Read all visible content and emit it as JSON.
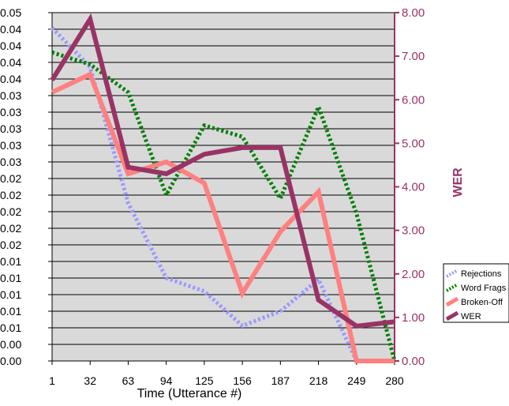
{
  "chart_data": {
    "type": "line",
    "x": [
      1,
      32,
      63,
      94,
      125,
      156,
      187,
      218,
      249,
      280
    ],
    "xlabel": "Time (Utterance #)",
    "ylabel_right": "WER",
    "y_left_ticks": [
      "0.00",
      "0.00",
      "0.01",
      "0.01",
      "0.01",
      "0.01",
      "0.01",
      "0.02",
      "0.02",
      "0.02",
      "0.02",
      "0.02",
      "0.03",
      "0.03",
      "0.03",
      "0.03",
      "0.03",
      "0.04",
      "0.04",
      "0.04",
      "0.04",
      "0.05"
    ],
    "y_left_lim": [
      0,
      0.0525
    ],
    "y_right_ticks": [
      "0.00",
      "1.00",
      "2.00",
      "3.00",
      "4.00",
      "5.00",
      "6.00",
      "7.00",
      "8.00"
    ],
    "y_right_lim": [
      0,
      8
    ],
    "grid": true,
    "legend_position": "right",
    "series": [
      {
        "name": "Rejections",
        "axis": "left",
        "color": "#9999ff",
        "style": "dotted",
        "values": [
          0.0502,
          0.0443,
          0.0238,
          0.0125,
          0.0105,
          0.0053,
          0.0075,
          0.0123,
          0.0,
          0.0
        ]
      },
      {
        "name": "Word Frags",
        "axis": "left",
        "color": "#008000",
        "style": "dotted",
        "values": [
          0.0465,
          0.0447,
          0.0405,
          0.025,
          0.0355,
          0.0338,
          0.0245,
          0.0383,
          0.0222,
          0.0
        ]
      },
      {
        "name": "Broken-Off",
        "axis": "left",
        "color": "#ff8080",
        "style": "solid",
        "values": [
          0.0405,
          0.0432,
          0.0282,
          0.03,
          0.0268,
          0.0102,
          0.0195,
          0.0255,
          0.0,
          0.0
        ]
      },
      {
        "name": "WER",
        "axis": "right",
        "color": "#993366",
        "style": "solid",
        "values": [
          6.45,
          7.85,
          4.45,
          4.3,
          4.75,
          4.9,
          4.9,
          1.4,
          0.8,
          0.9
        ]
      }
    ]
  },
  "colors": {
    "plot_bg": "#d9d9d9",
    "right_axis": "#993366",
    "grid": "#000000"
  }
}
